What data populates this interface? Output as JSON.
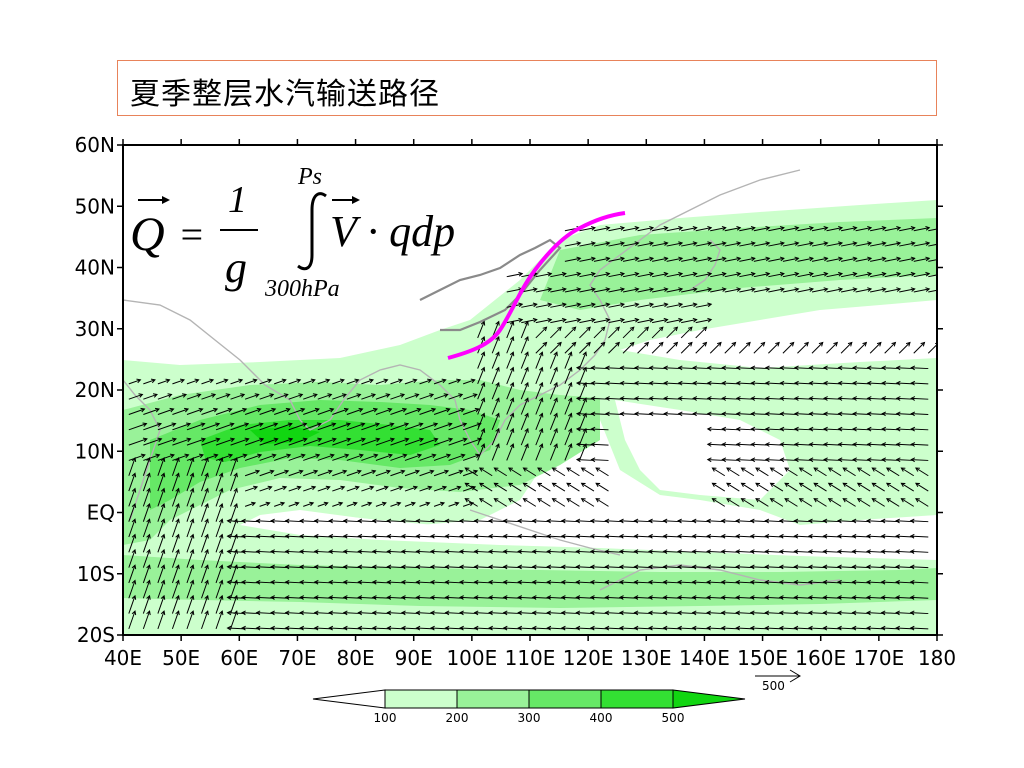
{
  "title": "夏季整层水汽输送路径",
  "formula": {
    "lhs": "Q",
    "equals": "=",
    "numerator": "1",
    "denominator": "g",
    "upper_limit": "Ps",
    "integrand": "V · qdp",
    "lower_limit": "300hPa"
  },
  "axes": {
    "lat_labels": [
      "60N",
      "50N",
      "40N",
      "30N",
      "20N",
      "10N",
      "EQ",
      "10S",
      "20S"
    ],
    "lon_labels": [
      "40E",
      "50E",
      "60E",
      "70E",
      "80E",
      "90E",
      "100E",
      "110E",
      "120E",
      "130E",
      "140E",
      "150E",
      "160E",
      "170E",
      "180"
    ],
    "lon_range": [
      40,
      180
    ],
    "lat_range": [
      -20,
      60
    ]
  },
  "reference_vector": {
    "label": "500"
  },
  "colorbar": {
    "labels": [
      "100",
      "200",
      "300",
      "400",
      "500"
    ],
    "colors": [
      "#ffffff",
      "#ccffcc",
      "#99f299",
      "#66e866",
      "#33e033",
      "#11d611"
    ]
  },
  "colors": {
    "path_line": "#ff00ff",
    "arrow": "#000000",
    "coast": "#b4b4b4",
    "title_border": "#e8835a"
  }
}
